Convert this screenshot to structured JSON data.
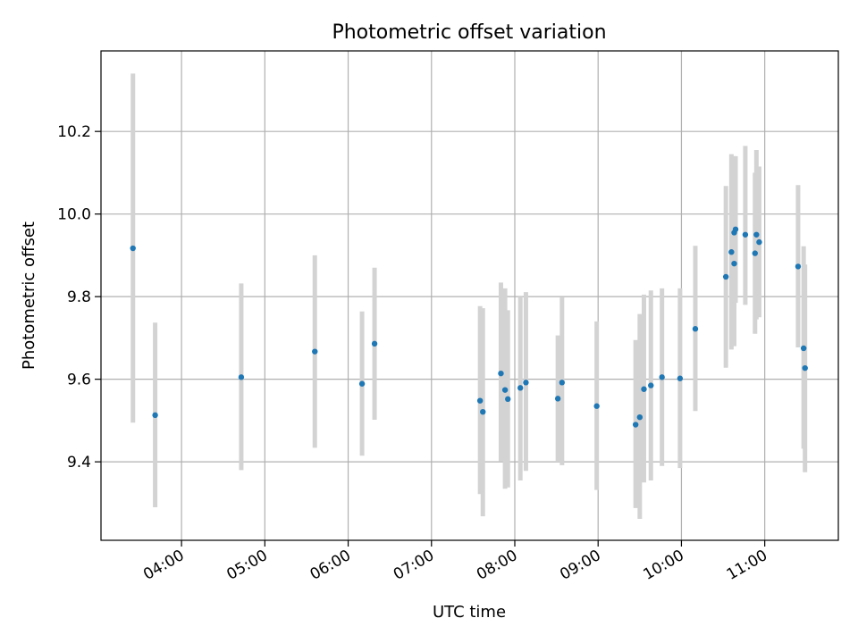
{
  "chart_data": {
    "type": "scatter",
    "title": "Photometric offset variation",
    "xlabel": "UTC time",
    "ylabel": "Photometric offset",
    "x_type": "time",
    "xlim": [
      "03:02",
      "11:53"
    ],
    "ylim": [
      9.21,
      10.395
    ],
    "x_ticks": [
      "04:00",
      "05:00",
      "06:00",
      "07:00",
      "08:00",
      "09:00",
      "10:00",
      "11:00"
    ],
    "y_ticks": [
      "9.4",
      "9.6",
      "9.8",
      "10.0",
      "10.2"
    ],
    "grid": true,
    "legend": false,
    "colors": {
      "marker": "#1f77b4",
      "errorbar": "#d3d3d3"
    },
    "points": [
      {
        "x": "03:25",
        "y": 9.917,
        "ylo": 9.495,
        "yhi": 10.34
      },
      {
        "x": "03:41",
        "y": 9.513,
        "ylo": 9.29,
        "yhi": 9.737
      },
      {
        "x": "04:43",
        "y": 9.605,
        "ylo": 9.38,
        "yhi": 9.832
      },
      {
        "x": "05:36",
        "y": 9.667,
        "ylo": 9.434,
        "yhi": 9.9
      },
      {
        "x": "06:10",
        "y": 9.589,
        "ylo": 9.415,
        "yhi": 9.764
      },
      {
        "x": "06:19",
        "y": 9.686,
        "ylo": 9.502,
        "yhi": 9.87
      },
      {
        "x": "07:35",
        "y": 9.548,
        "ylo": 9.322,
        "yhi": 9.777
      },
      {
        "x": "07:37",
        "y": 9.521,
        "ylo": 9.268,
        "yhi": 9.772
      },
      {
        "x": "07:50",
        "y": 9.614,
        "ylo": 9.402,
        "yhi": 9.834
      },
      {
        "x": "07:53",
        "y": 9.574,
        "ylo": 9.335,
        "yhi": 9.82
      },
      {
        "x": "07:55",
        "y": 9.552,
        "ylo": 9.338,
        "yhi": 9.767
      },
      {
        "x": "08:04",
        "y": 9.579,
        "ylo": 9.355,
        "yhi": 9.8
      },
      {
        "x": "08:08",
        "y": 9.592,
        "ylo": 9.378,
        "yhi": 9.811
      },
      {
        "x": "08:31",
        "y": 9.553,
        "ylo": 9.4,
        "yhi": 9.706
      },
      {
        "x": "08:34",
        "y": 9.592,
        "ylo": 9.392,
        "yhi": 9.798
      },
      {
        "x": "08:59",
        "y": 9.535,
        "ylo": 9.332,
        "yhi": 9.74
      },
      {
        "x": "09:27",
        "y": 9.49,
        "ylo": 9.288,
        "yhi": 9.695
      },
      {
        "x": "09:30",
        "y": 9.508,
        "ylo": 9.262,
        "yhi": 9.758
      },
      {
        "x": "09:33",
        "y": 9.576,
        "ylo": 9.35,
        "yhi": 9.805
      },
      {
        "x": "09:38",
        "y": 9.585,
        "ylo": 9.355,
        "yhi": 9.815
      },
      {
        "x": "09:46",
        "y": 9.605,
        "ylo": 9.39,
        "yhi": 9.82
      },
      {
        "x": "09:59",
        "y": 9.602,
        "ylo": 9.385,
        "yhi": 9.82
      },
      {
        "x": "10:10",
        "y": 9.722,
        "ylo": 9.523,
        "yhi": 9.923
      },
      {
        "x": "10:32",
        "y": 9.848,
        "ylo": 9.628,
        "yhi": 10.068
      },
      {
        "x": "10:36",
        "y": 9.908,
        "ylo": 9.672,
        "yhi": 10.145
      },
      {
        "x": "10:38",
        "y": 9.88,
        "ylo": 9.68,
        "yhi": 10.08
      },
      {
        "x": "10:38",
        "y": 9.955,
        "ylo": 9.77,
        "yhi": 10.14
      },
      {
        "x": "10:39",
        "y": 9.963,
        "ylo": 9.785,
        "yhi": 10.14
      },
      {
        "x": "10:46",
        "y": 9.95,
        "ylo": 9.78,
        "yhi": 10.165
      },
      {
        "x": "10:53",
        "y": 9.905,
        "ylo": 9.71,
        "yhi": 10.1
      },
      {
        "x": "10:54",
        "y": 9.95,
        "ylo": 9.745,
        "yhi": 10.155
      },
      {
        "x": "10:56",
        "y": 9.932,
        "ylo": 9.75,
        "yhi": 10.115
      },
      {
        "x": "11:24",
        "y": 9.873,
        "ylo": 9.677,
        "yhi": 10.07
      },
      {
        "x": "11:28",
        "y": 9.675,
        "ylo": 9.432,
        "yhi": 9.922
      },
      {
        "x": "11:29",
        "y": 9.627,
        "ylo": 9.375,
        "yhi": 9.878
      }
    ]
  }
}
